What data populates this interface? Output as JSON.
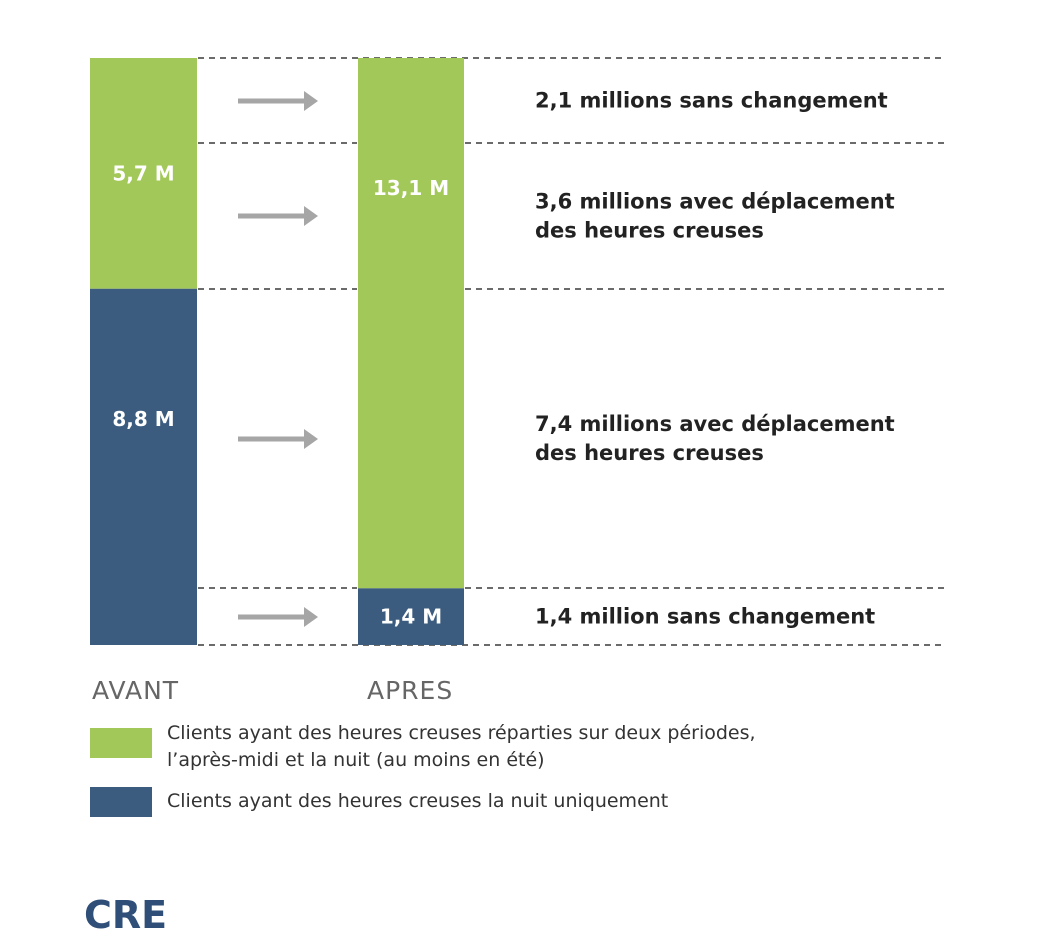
{
  "chart_data": {
    "type": "bar",
    "categories": [
      "AVANT",
      "APRES"
    ],
    "series": [
      {
        "name": "Clients ayant des heures creuses réparties sur deux périodes, l’après-midi et la nuit (au moins en été)",
        "color": "#a3c85a",
        "values": [
          5.7,
          13.1
        ],
        "labels": [
          "5,7 M",
          "13,1 M"
        ]
      },
      {
        "name": "Clients ayant des heures creuses la nuit uniquement",
        "color": "#3b5c7e",
        "values": [
          8.8,
          1.4
        ],
        "labels": [
          "8,8 M",
          "1,4 M"
        ]
      }
    ],
    "stacked": true,
    "unit": "M",
    "flows": [
      {
        "value": 2.1,
        "text": [
          "2,1 millions sans changement"
        ]
      },
      {
        "value": 3.6,
        "text": [
          "3,6 millions avec déplacement",
          "des heures creuses"
        ]
      },
      {
        "value": 7.4,
        "text": [
          "7,4 millions avec déplacement",
          "des heures creuses"
        ]
      },
      {
        "value": 1.4,
        "text": [
          "1,4 million sans changement"
        ]
      }
    ],
    "grid": "dashed separators between flow groups"
  },
  "colors": {
    "green": "#a3c85a",
    "blue": "#3b5c7e",
    "arrow": "#a6a6a6",
    "dash": "#3a3a3a",
    "logo": "#2f4f78"
  },
  "logo": {
    "text": "CRE"
  }
}
